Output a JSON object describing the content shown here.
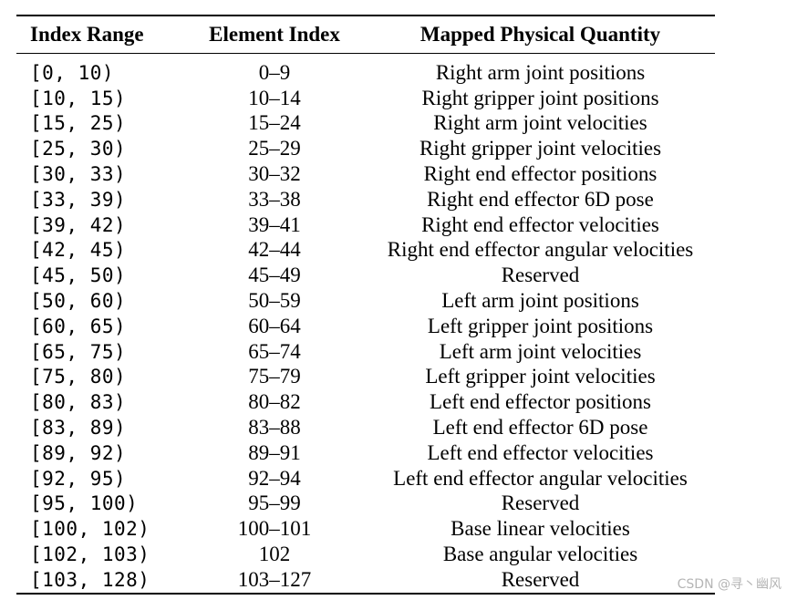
{
  "table": {
    "headers": {
      "range": "Index Range",
      "index": "Element Index",
      "quantity": "Mapped Physical Quantity"
    },
    "rows": [
      {
        "range": "[0, 10)",
        "index": "0–9",
        "quantity": "Right arm joint positions"
      },
      {
        "range": "[10, 15)",
        "index": "10–14",
        "quantity": "Right gripper joint positions"
      },
      {
        "range": "[15, 25)",
        "index": "15–24",
        "quantity": "Right arm joint velocities"
      },
      {
        "range": "[25, 30)",
        "index": "25–29",
        "quantity": "Right gripper joint velocities"
      },
      {
        "range": "[30, 33)",
        "index": "30–32",
        "quantity": "Right end effector positions"
      },
      {
        "range": "[33, 39)",
        "index": "33–38",
        "quantity": "Right end effector 6D pose"
      },
      {
        "range": "[39, 42)",
        "index": "39–41",
        "quantity": "Right end effector velocities"
      },
      {
        "range": "[42, 45)",
        "index": "42–44",
        "quantity": "Right end effector angular velocities"
      },
      {
        "range": "[45, 50)",
        "index": "45–49",
        "quantity": "Reserved"
      },
      {
        "range": "[50, 60)",
        "index": "50–59",
        "quantity": "Left arm joint positions"
      },
      {
        "range": "[60, 65)",
        "index": "60–64",
        "quantity": "Left gripper joint positions"
      },
      {
        "range": "[65, 75)",
        "index": "65–74",
        "quantity": "Left arm joint velocities"
      },
      {
        "range": "[75, 80)",
        "index": "75–79",
        "quantity": "Left gripper joint velocities"
      },
      {
        "range": "[80, 83)",
        "index": "80–82",
        "quantity": "Left end effector positions"
      },
      {
        "range": "[83, 89)",
        "index": "83–88",
        "quantity": "Left end effector 6D pose"
      },
      {
        "range": "[89, 92)",
        "index": "89–91",
        "quantity": "Left end effector velocities"
      },
      {
        "range": "[92, 95)",
        "index": "92–94",
        "quantity": "Left end effector angular velocities"
      },
      {
        "range": "[95, 100)",
        "index": "95–99",
        "quantity": "Reserved"
      },
      {
        "range": "[100, 102)",
        "index": "100–101",
        "quantity": "Base linear velocities"
      },
      {
        "range": "[102, 103)",
        "index": "102",
        "quantity": "Base angular velocities"
      },
      {
        "range": "[103, 128)",
        "index": "103–127",
        "quantity": "Reserved"
      }
    ]
  },
  "watermark": "CSDN @寻丶幽风"
}
